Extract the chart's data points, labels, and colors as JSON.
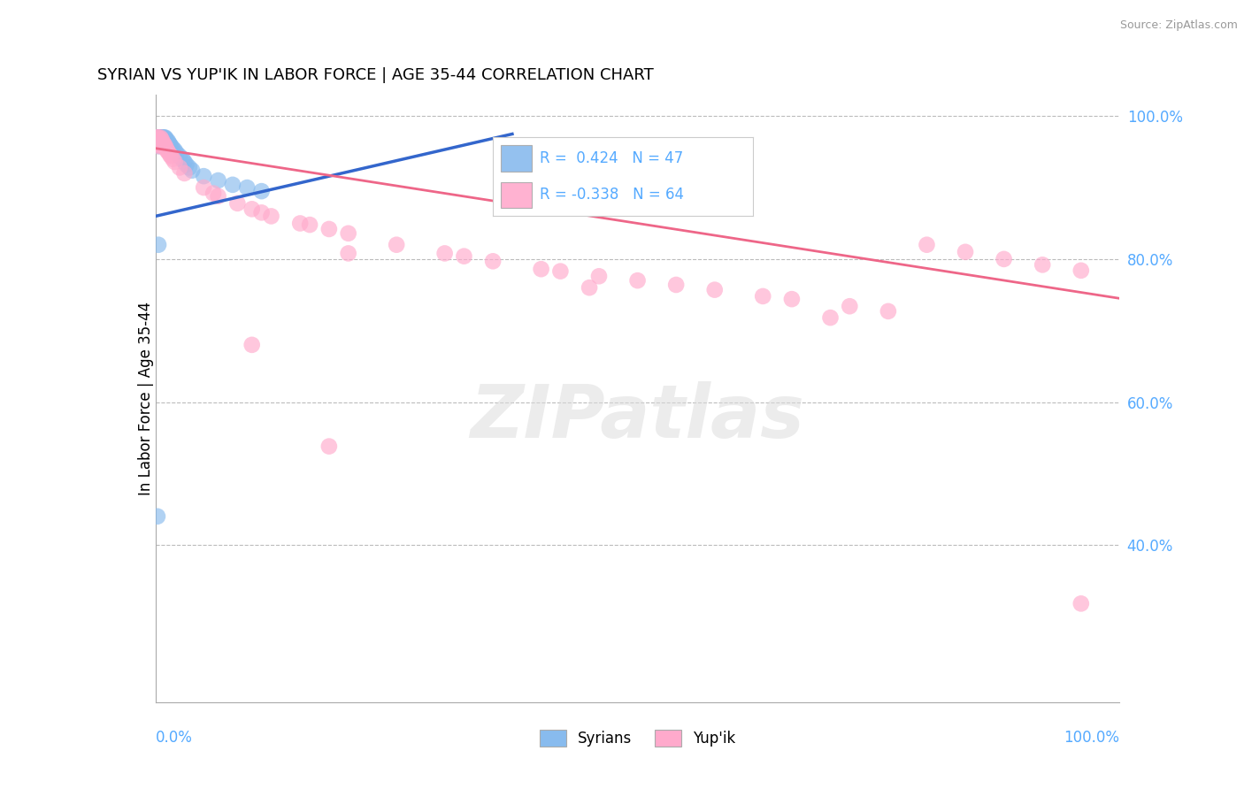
{
  "title": "SYRIAN VS YUP'IK IN LABOR FORCE | AGE 35-44 CORRELATION CHART",
  "source_text": "Source: ZipAtlas.com",
  "ylabel": "In Labor Force | Age 35-44",
  "syrian_R": 0.424,
  "syrian_N": 47,
  "yupik_R": -0.338,
  "yupik_N": 64,
  "syrian_color": "#88bbee",
  "yupik_color": "#ffaacc",
  "syrian_line_color": "#3366cc",
  "yupik_line_color": "#ee6688",
  "background_color": "#ffffff",
  "grid_color": "#bbbbbb",
  "right_axis_color": "#55aaff",
  "watermark_text": "ZIPatlas",
  "xmin": 0.0,
  "xmax": 1.0,
  "ymin": 0.18,
  "ymax": 1.03,
  "yticks": [
    0.4,
    0.6,
    0.8,
    1.0
  ],
  "ytick_labels": [
    "40.0%",
    "60.0%",
    "80.0%",
    "100.0%"
  ],
  "syrian_line_x": [
    0.0,
    0.37
  ],
  "syrian_line_y": [
    0.86,
    0.975
  ],
  "yupik_line_x": [
    0.0,
    1.0
  ],
  "yupik_line_y": [
    0.955,
    0.745
  ],
  "syrian_pts_x": [
    0.001,
    0.001,
    0.002,
    0.002,
    0.002,
    0.003,
    0.003,
    0.003,
    0.003,
    0.004,
    0.004,
    0.004,
    0.005,
    0.005,
    0.005,
    0.006,
    0.006,
    0.007,
    0.007,
    0.007,
    0.008,
    0.008,
    0.009,
    0.01,
    0.01,
    0.011,
    0.012,
    0.013,
    0.014,
    0.015,
    0.016,
    0.018,
    0.02,
    0.022,
    0.025,
    0.028,
    0.03,
    0.032,
    0.035,
    0.038,
    0.05,
    0.065,
    0.08,
    0.095,
    0.11,
    0.002,
    0.003
  ],
  "syrian_pts_y": [
    0.97,
    0.968,
    0.97,
    0.966,
    0.963,
    0.97,
    0.967,
    0.964,
    0.96,
    0.97,
    0.965,
    0.958,
    0.97,
    0.965,
    0.96,
    0.97,
    0.963,
    0.97,
    0.966,
    0.96,
    0.97,
    0.964,
    0.97,
    0.97,
    0.965,
    0.968,
    0.964,
    0.965,
    0.962,
    0.96,
    0.958,
    0.955,
    0.952,
    0.948,
    0.944,
    0.94,
    0.936,
    0.932,
    0.928,
    0.924,
    0.916,
    0.91,
    0.904,
    0.9,
    0.895,
    0.44,
    0.82
  ],
  "yupik_pts_x": [
    0.001,
    0.001,
    0.002,
    0.002,
    0.002,
    0.003,
    0.003,
    0.003,
    0.004,
    0.004,
    0.005,
    0.005,
    0.006,
    0.006,
    0.007,
    0.007,
    0.008,
    0.009,
    0.01,
    0.011,
    0.012,
    0.013,
    0.015,
    0.016,
    0.018,
    0.02,
    0.025,
    0.03,
    0.05,
    0.06,
    0.065,
    0.085,
    0.1,
    0.11,
    0.12,
    0.15,
    0.16,
    0.18,
    0.2,
    0.25,
    0.3,
    0.32,
    0.35,
    0.4,
    0.42,
    0.46,
    0.5,
    0.54,
    0.58,
    0.63,
    0.66,
    0.72,
    0.76,
    0.8,
    0.84,
    0.88,
    0.92,
    0.96,
    0.18,
    0.1,
    0.2,
    0.45,
    0.7,
    0.96
  ],
  "yupik_pts_y": [
    0.97,
    0.965,
    0.97,
    0.965,
    0.96,
    0.97,
    0.965,
    0.958,
    0.967,
    0.96,
    0.97,
    0.962,
    0.968,
    0.96,
    0.965,
    0.958,
    0.962,
    0.96,
    0.958,
    0.955,
    0.952,
    0.95,
    0.946,
    0.944,
    0.94,
    0.936,
    0.928,
    0.92,
    0.9,
    0.892,
    0.888,
    0.878,
    0.87,
    0.865,
    0.86,
    0.85,
    0.848,
    0.842,
    0.836,
    0.82,
    0.808,
    0.804,
    0.797,
    0.786,
    0.783,
    0.776,
    0.77,
    0.764,
    0.757,
    0.748,
    0.744,
    0.734,
    0.727,
    0.82,
    0.81,
    0.8,
    0.792,
    0.784,
    0.538,
    0.68,
    0.808,
    0.76,
    0.718,
    0.318
  ]
}
